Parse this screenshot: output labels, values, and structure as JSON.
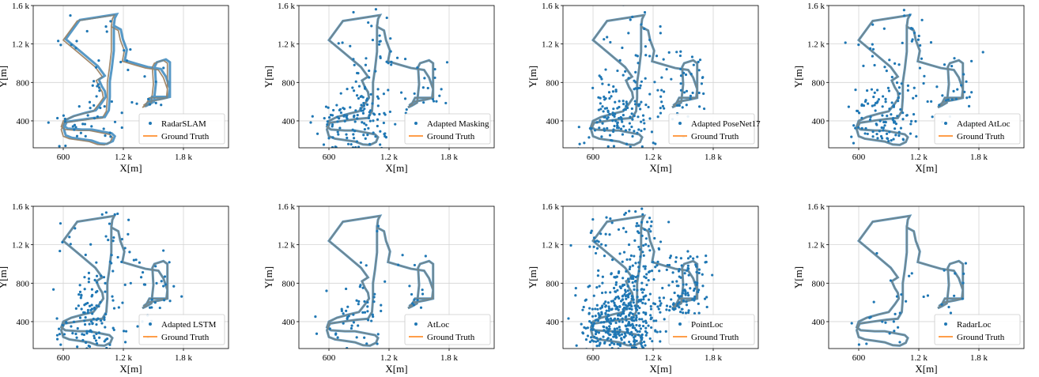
{
  "colors": {
    "estimate": "#1f77b4",
    "ground_truth": "#ff7f0e",
    "grid": "#d4d4d4",
    "frame": "#000000"
  },
  "chart_data": [
    {
      "type": "scatter",
      "xlabel": "X[m]",
      "ylabel": "Y[m]",
      "xlim": [
        300,
        2250
      ],
      "ylim": [
        120,
        1600
      ],
      "xticks": [
        600,
        1200,
        1800
      ],
      "xtick_labels": [
        "600",
        "1.2 k",
        "1.8 k"
      ],
      "yticks": [
        400,
        800,
        1200,
        1600
      ],
      "ytick_labels": [
        "400",
        "800",
        "1.2 k",
        "1.6 k"
      ],
      "grid": true,
      "legend_placement": "lower-right",
      "series": [
        {
          "name": "RadarSLAM",
          "kind": "points",
          "scatter": "low",
          "offset": [
            25,
            10
          ]
        },
        {
          "name": "Ground Truth",
          "kind": "line"
        }
      ]
    },
    {
      "type": "scatter",
      "xlabel": "X[m]",
      "ylabel": "Y[m]",
      "xlim": [
        300,
        2250
      ],
      "ylim": [
        120,
        1600
      ],
      "xticks": [
        600,
        1200,
        1800
      ],
      "xtick_labels": [
        "600",
        "1.2 k",
        "1.8 k"
      ],
      "yticks": [
        400,
        800,
        1200,
        1600
      ],
      "ytick_labels": [
        "400",
        "800",
        "1.2 k",
        "1.6 k"
      ],
      "grid": true,
      "legend_placement": "lower-right",
      "series": [
        {
          "name": "Adapted Masking",
          "kind": "points",
          "scatter": "medium"
        },
        {
          "name": "Ground Truth",
          "kind": "line"
        }
      ]
    },
    {
      "type": "scatter",
      "xlabel": "X[m]",
      "ylabel": "Y[m]",
      "xlim": [
        300,
        2250
      ],
      "ylim": [
        120,
        1600
      ],
      "xticks": [
        600,
        1200,
        1800
      ],
      "xtick_labels": [
        "600",
        "1.2 k",
        "1.8 k"
      ],
      "yticks": [
        400,
        800,
        1200,
        1600
      ],
      "ytick_labels": [
        "400",
        "800",
        "1.2 k",
        "1.6 k"
      ],
      "grid": true,
      "legend_placement": "lower-right",
      "series": [
        {
          "name": "Adapted PoseNet17",
          "kind": "points",
          "scatter": "high"
        },
        {
          "name": "Ground Truth",
          "kind": "line"
        }
      ]
    },
    {
      "type": "scatter",
      "xlabel": "X[m]",
      "ylabel": "Y[m]",
      "xlim": [
        300,
        2250
      ],
      "ylim": [
        120,
        1600
      ],
      "xticks": [
        600,
        1200,
        1800
      ],
      "xtick_labels": [
        "600",
        "1.2 k",
        "1.8 k"
      ],
      "yticks": [
        400,
        800,
        1200,
        1600
      ],
      "ytick_labels": [
        "400",
        "800",
        "1.2 k",
        "1.6 k"
      ],
      "grid": true,
      "legend_placement": "lower-right",
      "series": [
        {
          "name": "Adapted AtLoc",
          "kind": "points",
          "scatter": "medium"
        },
        {
          "name": "Ground Truth",
          "kind": "line"
        }
      ]
    },
    {
      "type": "scatter",
      "xlabel": "X[m]",
      "ylabel": "Y[m]",
      "xlim": [
        300,
        2250
      ],
      "ylim": [
        120,
        1600
      ],
      "xticks": [
        600,
        1200,
        1800
      ],
      "xtick_labels": [
        "600",
        "1.2 k",
        "1.8 k"
      ],
      "yticks": [
        400,
        800,
        1200,
        1600
      ],
      "ytick_labels": [
        "400",
        "800",
        "1.2 k",
        "1.6 k"
      ],
      "grid": true,
      "legend_placement": "lower-right",
      "series": [
        {
          "name": "Adapted LSTM",
          "kind": "points",
          "scatter": "medium"
        },
        {
          "name": "Ground Truth",
          "kind": "line"
        }
      ]
    },
    {
      "type": "scatter",
      "xlabel": "X[m]",
      "ylabel": "Y[m]",
      "xlim": [
        300,
        2250
      ],
      "ylim": [
        120,
        1600
      ],
      "xticks": [
        600,
        1200,
        1800
      ],
      "xtick_labels": [
        "600",
        "1.2 k",
        "1.8 k"
      ],
      "yticks": [
        400,
        800,
        1200,
        1600
      ],
      "ytick_labels": [
        "400",
        "800",
        "1.2 k",
        "1.6 k"
      ],
      "grid": true,
      "legend_placement": "lower-right",
      "series": [
        {
          "name": "AtLoc",
          "kind": "points",
          "scatter": "low"
        },
        {
          "name": "Ground Truth",
          "kind": "line"
        }
      ]
    },
    {
      "type": "scatter",
      "xlabel": "X[m]",
      "ylabel": "Y[m]",
      "xlim": [
        300,
        2250
      ],
      "ylim": [
        120,
        1600
      ],
      "xticks": [
        600,
        1200,
        1800
      ],
      "xtick_labels": [
        "600",
        "1.2 k",
        "1.8 k"
      ],
      "yticks": [
        400,
        800,
        1200,
        1600
      ],
      "ytick_labels": [
        "400",
        "800",
        "1.2 k",
        "1.6 k"
      ],
      "grid": true,
      "legend_placement": "lower-right",
      "series": [
        {
          "name": "PointLoc",
          "kind": "points",
          "scatter": "very-high"
        },
        {
          "name": "Ground Truth",
          "kind": "line"
        }
      ]
    },
    {
      "type": "scatter",
      "xlabel": "X[m]",
      "ylabel": "Y[m]",
      "xlim": [
        300,
        2250
      ],
      "ylim": [
        120,
        1600
      ],
      "xticks": [
        600,
        1200,
        1800
      ],
      "xtick_labels": [
        "600",
        "1.2 k",
        "1.8 k"
      ],
      "yticks": [
        400,
        800,
        1200,
        1600
      ],
      "ytick_labels": [
        "400",
        "800",
        "1.2 k",
        "1.6 k"
      ],
      "grid": true,
      "legend_placement": "lower-right",
      "series": [
        {
          "name": "RadarLoc",
          "kind": "points",
          "scatter": "very-low"
        },
        {
          "name": "Ground Truth",
          "kind": "line"
        }
      ]
    }
  ],
  "ground_truth_path": [
    [
      1080,
      1380
    ],
    [
      1090,
      1460
    ],
    [
      1110,
      1500
    ],
    [
      1050,
      1490
    ],
    [
      740,
      1440
    ],
    [
      600,
      1240
    ],
    [
      750,
      1110
    ],
    [
      920,
      960
    ],
    [
      990,
      860
    ],
    [
      930,
      820
    ],
    [
      960,
      750
    ],
    [
      990,
      700
    ],
    [
      1000,
      640
    ],
    [
      960,
      580
    ],
    [
      900,
      500
    ],
    [
      800,
      475
    ],
    [
      680,
      440
    ],
    [
      600,
      400
    ],
    [
      580,
      340
    ],
    [
      620,
      310
    ],
    [
      760,
      300
    ],
    [
      860,
      300
    ],
    [
      960,
      280
    ],
    [
      1060,
      260
    ],
    [
      1090,
      230
    ],
    [
      1070,
      180
    ],
    [
      1010,
      150
    ],
    [
      940,
      155
    ],
    [
      860,
      185
    ],
    [
      760,
      200
    ],
    [
      660,
      215
    ],
    [
      600,
      240
    ],
    [
      580,
      310
    ],
    [
      610,
      380
    ],
    [
      740,
      400
    ],
    [
      880,
      420
    ],
    [
      990,
      430
    ],
    [
      1030,
      500
    ],
    [
      1040,
      640
    ],
    [
      1040,
      800
    ],
    [
      1060,
      940
    ],
    [
      1080,
      1120
    ],
    [
      1080,
      1260
    ],
    [
      1080,
      1380
    ],
    [
      1150,
      1340
    ],
    [
      1170,
      1240
    ],
    [
      1210,
      1130
    ],
    [
      1190,
      1020
    ],
    [
      1320,
      980
    ],
    [
      1420,
      950
    ],
    [
      1550,
      930
    ],
    [
      1600,
      850
    ],
    [
      1640,
      730
    ],
    [
      1630,
      640
    ],
    [
      1460,
      640
    ],
    [
      1420,
      560
    ],
    [
      1390,
      540
    ],
    [
      1430,
      560
    ],
    [
      1480,
      590
    ],
    [
      1500,
      780
    ],
    [
      1490,
      960
    ],
    [
      1510,
      1000
    ],
    [
      1600,
      1030
    ],
    [
      1640,
      1000
    ],
    [
      1640,
      700
    ],
    [
      1640,
      640
    ],
    [
      1560,
      620
    ],
    [
      1450,
      600
    ],
    [
      1400,
      560
    ]
  ]
}
